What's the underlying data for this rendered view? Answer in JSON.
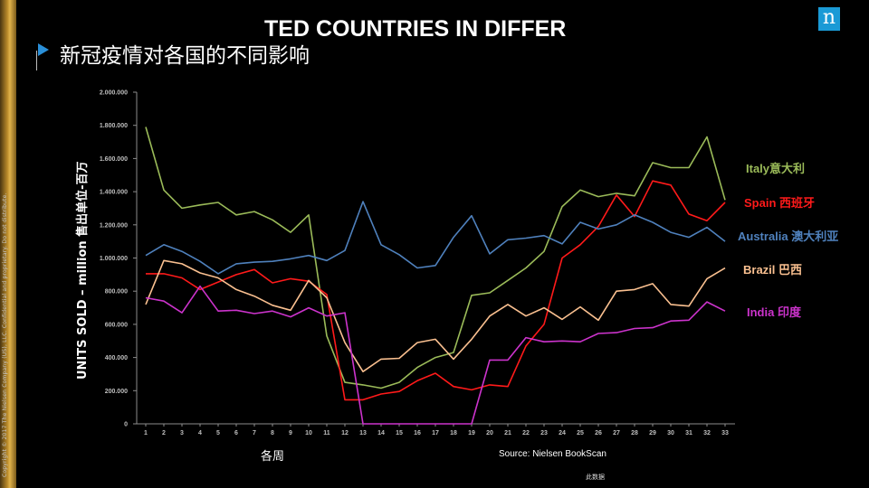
{
  "slide": {
    "title_en": "TED COUNTRIES IN DIFFER",
    "title_cn": "新冠疫情对各国的不同影响",
    "copyright": "Copyright © 2017 The Nielsen Company (US), LLC. Confidential and proprietary. Do not distribute.",
    "logo_letter": "n",
    "x_axis_caption": "各周",
    "source": "Source: Nielsen BookScan",
    "footnote": "此数据",
    "colors": {
      "accent": "#1a9ad6",
      "gold": "#c49a35"
    }
  },
  "chart_data": {
    "type": "line",
    "title": "",
    "xlabel": "各周",
    "ylabel": "UNITS SOLD – million 售出单位-百万",
    "x": [
      1,
      2,
      3,
      4,
      5,
      6,
      7,
      8,
      9,
      10,
      11,
      12,
      13,
      14,
      15,
      16,
      17,
      18,
      19,
      20,
      21,
      22,
      23,
      24,
      25,
      26,
      27,
      28,
      29,
      30,
      31,
      32,
      33
    ],
    "ylim": [
      0,
      2000000
    ],
    "yticks": [
      0,
      200000,
      400000,
      600000,
      800000,
      1000000,
      1200000,
      1400000,
      1600000,
      1800000,
      2000000
    ],
    "ytick_labels": [
      "0",
      "200.000",
      "400.000",
      "600.000",
      "800.000",
      "1.000.000",
      "1.200.000",
      "1.400.000",
      "1.600.000",
      "1.800.000",
      "2.000.000"
    ],
    "grid": false,
    "legend_position": "right",
    "series": [
      {
        "name": "Italy意大利",
        "color": "#9bbb59",
        "values": [
          1790000,
          1410000,
          1300000,
          1320000,
          1335000,
          1260000,
          1280000,
          1230000,
          1155000,
          1260000,
          530000,
          250000,
          235000,
          215000,
          250000,
          340000,
          400000,
          430000,
          775000,
          790000,
          865000,
          940000,
          1040000,
          1310000,
          1410000,
          1370000,
          1390000,
          1375000,
          1575000,
          1545000,
          1545000,
          1730000,
          1350000
        ]
      },
      {
        "name": "Spain 西班牙",
        "color": "#ff1a1a",
        "values": [
          905000,
          905000,
          880000,
          810000,
          855000,
          900000,
          930000,
          850000,
          875000,
          860000,
          780000,
          145000,
          145000,
          180000,
          195000,
          260000,
          305000,
          225000,
          205000,
          235000,
          225000,
          470000,
          600000,
          1000000,
          1080000,
          1190000,
          1380000,
          1250000,
          1465000,
          1440000,
          1265000,
          1225000,
          1335000
        ]
      },
      {
        "name": "Australia 澳大利亚",
        "color": "#4f81bd",
        "values": [
          1015000,
          1080000,
          1040000,
          980000,
          905000,
          965000,
          975000,
          980000,
          995000,
          1015000,
          985000,
          1045000,
          1340000,
          1080000,
          1020000,
          940000,
          955000,
          1125000,
          1255000,
          1025000,
          1110000,
          1120000,
          1135000,
          1085000,
          1215000,
          1175000,
          1200000,
          1260000,
          1215000,
          1155000,
          1125000,
          1185000,
          1100000
        ]
      },
      {
        "name": "Brazil 巴西",
        "color": "#fac090",
        "values": [
          720000,
          985000,
          965000,
          910000,
          880000,
          810000,
          770000,
          715000,
          685000,
          865000,
          760000,
          490000,
          315000,
          390000,
          395000,
          490000,
          510000,
          390000,
          510000,
          650000,
          720000,
          650000,
          700000,
          630000,
          705000,
          625000,
          800000,
          810000,
          845000,
          720000,
          710000,
          875000,
          940000
        ]
      },
      {
        "name": "India 印度",
        "color": "#cc33cc",
        "values": [
          760000,
          740000,
          670000,
          830000,
          680000,
          685000,
          665000,
          680000,
          645000,
          700000,
          650000,
          670000,
          0,
          0,
          0,
          0,
          0,
          0,
          0,
          385000,
          385000,
          520000,
          495000,
          500000,
          495000,
          545000,
          550000,
          575000,
          580000,
          620000,
          625000,
          735000,
          680000
        ]
      }
    ]
  }
}
